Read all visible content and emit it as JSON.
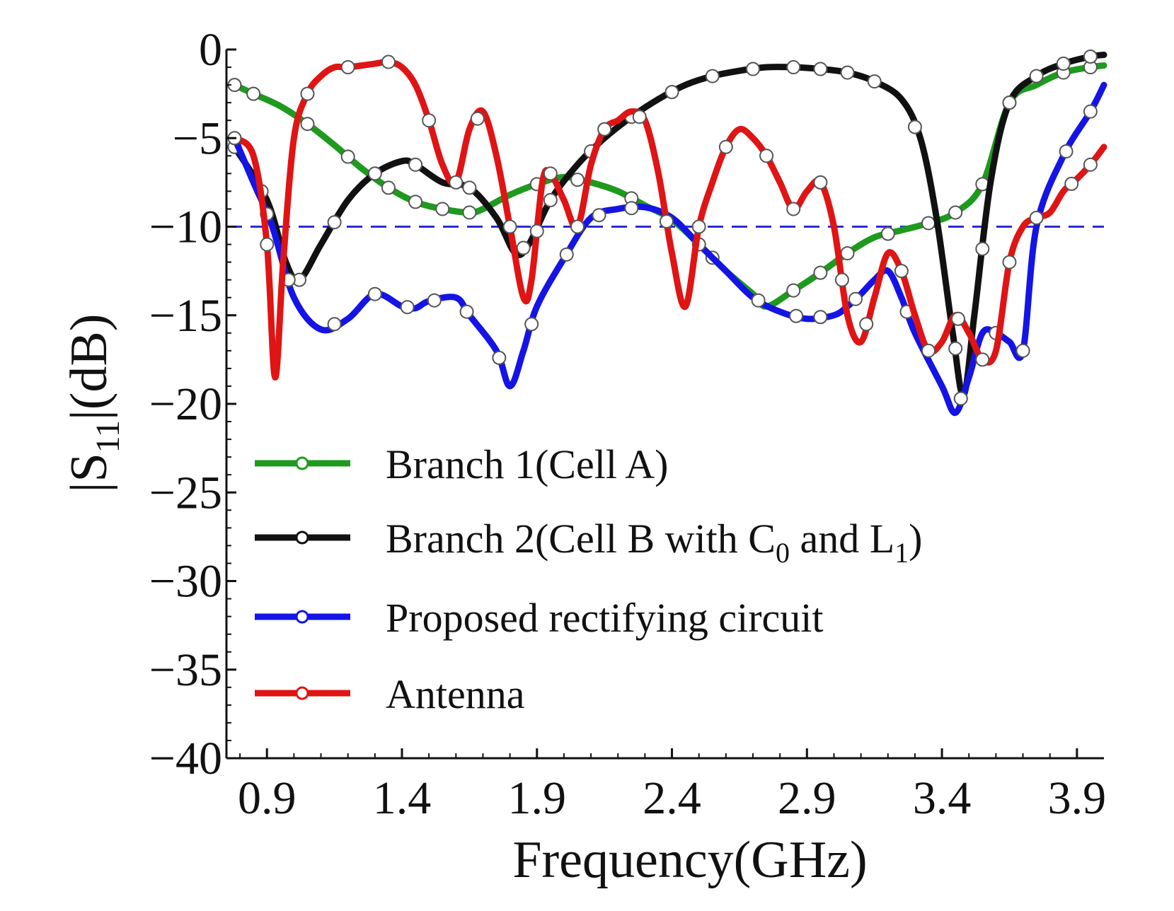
{
  "chart_data": {
    "type": "line",
    "xlabel": "Frequency(GHz)",
    "ylabel": "|S11|(dB)",
    "ylabel_main": "|S",
    "ylabel_sub": "11",
    "ylabel_tail": "|(dB)",
    "xlim": [
      0.75,
      4.0
    ],
    "ylim": [
      -40,
      0
    ],
    "xticks": [
      0.9,
      1.4,
      1.9,
      2.4,
      2.9,
      3.4,
      3.9
    ],
    "xtick_labels": [
      "0.9",
      "1.4",
      "1.9",
      "2.4",
      "2.9",
      "3.4",
      "3.9"
    ],
    "yticks": [
      0,
      -5,
      -10,
      -15,
      -20,
      -25,
      -30,
      -35,
      -40
    ],
    "ytick_labels": [
      "0",
      "−5",
      "−10",
      "−15",
      "−20",
      "−25",
      "−30",
      "−35",
      "−40"
    ],
    "reference_line": {
      "y": -10,
      "style": "dashed",
      "color": "#2b2bd9"
    },
    "legend_position": "lower-left",
    "series": [
      {
        "name": "Branch 1(Cell A)",
        "color": "#1e9a1e",
        "x": [
          0.78,
          0.85,
          0.95,
          1.05,
          1.15,
          1.25,
          1.35,
          1.45,
          1.55,
          1.65,
          1.7,
          1.8,
          1.9,
          2.0,
          2.1,
          2.2,
          2.3,
          2.4,
          2.5,
          2.6,
          2.7,
          2.75,
          2.85,
          2.95,
          3.05,
          3.15,
          3.25,
          3.35,
          3.45,
          3.55,
          3.65,
          3.75,
          3.85,
          3.95,
          4.0
        ],
        "y": [
          -2.0,
          -2.5,
          -3.2,
          -4.2,
          -5.4,
          -6.7,
          -7.8,
          -8.6,
          -9.0,
          -9.2,
          -9.0,
          -8.2,
          -7.6,
          -7.2,
          -7.5,
          -8.0,
          -8.8,
          -9.6,
          -11.0,
          -12.5,
          -13.8,
          -14.5,
          -13.6,
          -12.6,
          -11.5,
          -10.6,
          -10.2,
          -9.8,
          -9.2,
          -7.6,
          -3.0,
          -2.0,
          -1.3,
          -1.0,
          -0.9
        ],
        "markers_x": [
          0.78,
          0.85,
          1.05,
          1.2,
          1.35,
          1.45,
          1.55,
          1.65,
          1.9,
          2.05,
          2.25,
          2.55,
          2.85,
          2.95,
          3.05,
          3.2,
          3.35,
          3.45,
          3.55,
          3.65,
          3.85,
          3.95
        ]
      },
      {
        "name": "Branch 2(Cell B with C0 and L1)",
        "name_main": "Branch 2(Cell B with C",
        "name_sub1": "0",
        "name_mid": " and L",
        "name_sub2": "1",
        "name_tail": ")",
        "color": "#111111",
        "x": [
          0.78,
          0.9,
          0.97,
          1.02,
          1.1,
          1.2,
          1.3,
          1.4,
          1.45,
          1.55,
          1.65,
          1.75,
          1.82,
          1.87,
          1.95,
          2.05,
          2.15,
          2.25,
          2.35,
          2.45,
          2.55,
          2.65,
          2.75,
          2.85,
          2.95,
          3.05,
          3.15,
          3.25,
          3.32,
          3.38,
          3.44,
          3.48,
          3.52,
          3.58,
          3.65,
          3.75,
          3.85,
          3.95,
          4.0
        ],
        "y": [
          -5.5,
          -8.5,
          -12.0,
          -13.0,
          -11.0,
          -8.5,
          -7.0,
          -6.3,
          -6.5,
          -7.5,
          -7.8,
          -9.5,
          -11.5,
          -11.0,
          -8.5,
          -6.5,
          -5.0,
          -3.8,
          -2.8,
          -2.0,
          -1.5,
          -1.2,
          -1.0,
          -1.0,
          -1.1,
          -1.3,
          -1.8,
          -2.8,
          -5.0,
          -9.5,
          -16.0,
          -19.5,
          -15.0,
          -7.5,
          -3.0,
          -1.5,
          -0.8,
          -0.4,
          -0.3
        ],
        "markers_x": [
          0.78,
          0.88,
          1.02,
          1.15,
          1.3,
          1.45,
          1.65,
          1.85,
          1.95,
          2.1,
          2.25,
          2.4,
          2.55,
          2.7,
          2.85,
          2.95,
          3.05,
          3.15,
          3.3,
          3.45,
          3.55,
          3.65,
          3.75,
          3.85,
          3.95
        ]
      },
      {
        "name": "Proposed rectifying circuit",
        "color": "#1414e6",
        "x": [
          0.78,
          0.85,
          0.92,
          1.0,
          1.1,
          1.2,
          1.3,
          1.4,
          1.45,
          1.5,
          1.6,
          1.65,
          1.75,
          1.8,
          1.85,
          1.9,
          2.0,
          2.1,
          2.2,
          2.3,
          2.4,
          2.5,
          2.6,
          2.7,
          2.8,
          2.9,
          3.0,
          3.05,
          3.1,
          3.15,
          3.2,
          3.25,
          3.3,
          3.4,
          3.45,
          3.5,
          3.55,
          3.6,
          3.65,
          3.7,
          3.75,
          3.85,
          3.95,
          4.0
        ],
        "y": [
          -5.0,
          -7.5,
          -10.0,
          -14.0,
          -15.8,
          -15.2,
          -13.8,
          -14.5,
          -14.6,
          -14.2,
          -14.0,
          -15.0,
          -17.0,
          -19.0,
          -17.0,
          -14.5,
          -11.8,
          -9.5,
          -9.0,
          -8.9,
          -9.5,
          -11.0,
          -12.5,
          -14.0,
          -14.8,
          -15.2,
          -15.0,
          -14.5,
          -13.8,
          -13.0,
          -12.5,
          -14.0,
          -16.0,
          -19.0,
          -20.5,
          -18.5,
          -16.0,
          -16.0,
          -16.5,
          -17.0,
          -10.0,
          -6.0,
          -3.5,
          -2.0
        ],
        "markers_x": [
          0.9,
          0.98,
          1.15,
          1.3,
          1.42,
          1.52,
          1.64,
          1.76,
          1.88,
          2.01,
          2.13,
          2.25,
          2.5,
          2.72,
          2.86,
          2.95,
          3.08,
          3.27,
          3.47,
          3.6,
          3.7,
          3.86,
          3.95
        ]
      },
      {
        "name": "Antenna",
        "color": "#e01414",
        "x": [
          0.78,
          0.85,
          0.9,
          0.93,
          0.96,
          1.0,
          1.05,
          1.1,
          1.15,
          1.2,
          1.3,
          1.35,
          1.4,
          1.45,
          1.5,
          1.55,
          1.6,
          1.65,
          1.7,
          1.75,
          1.8,
          1.85,
          1.88,
          1.92,
          1.95,
          2.0,
          2.05,
          2.1,
          2.15,
          2.2,
          2.25,
          2.3,
          2.35,
          2.4,
          2.45,
          2.5,
          2.55,
          2.6,
          2.65,
          2.7,
          2.75,
          2.8,
          2.85,
          2.9,
          2.95,
          3.0,
          3.05,
          3.1,
          3.15,
          3.2,
          3.25,
          3.3,
          3.35,
          3.4,
          3.45,
          3.5,
          3.55,
          3.6,
          3.65,
          3.7,
          3.75,
          3.8,
          3.85,
          3.9,
          3.95,
          4.0
        ],
        "y": [
          -5.0,
          -6.0,
          -11.0,
          -18.5,
          -12.0,
          -5.0,
          -2.5,
          -1.5,
          -1.0,
          -1.0,
          -0.8,
          -0.7,
          -1.0,
          -2.0,
          -4.0,
          -6.5,
          -7.5,
          -4.5,
          -3.5,
          -6.0,
          -10.0,
          -14.0,
          -13.0,
          -7.5,
          -7.0,
          -8.5,
          -10.0,
          -6.5,
          -4.5,
          -4.0,
          -3.5,
          -4.0,
          -7.0,
          -11.5,
          -14.5,
          -10.0,
          -7.5,
          -5.5,
          -4.5,
          -5.0,
          -6.0,
          -7.5,
          -9.0,
          -8.0,
          -7.5,
          -10.0,
          -15.0,
          -16.5,
          -14.0,
          -11.5,
          -12.5,
          -15.0,
          -17.0,
          -16.5,
          -15.0,
          -16.0,
          -17.5,
          -17.0,
          -12.0,
          -10.0,
          -9.5,
          -9.2,
          -8.0,
          -7.3,
          -6.5,
          -5.5
        ],
        "markers_x": [
          0.78,
          0.9,
          1.05,
          1.2,
          1.35,
          1.5,
          1.6,
          1.68,
          1.8,
          1.9,
          1.95,
          2.05,
          2.15,
          2.28,
          2.38,
          2.5,
          2.6,
          2.75,
          2.85,
          2.95,
          3.03,
          3.12,
          3.25,
          3.35,
          3.46,
          3.55,
          3.65,
          3.75,
          3.88,
          3.95
        ]
      }
    ]
  }
}
